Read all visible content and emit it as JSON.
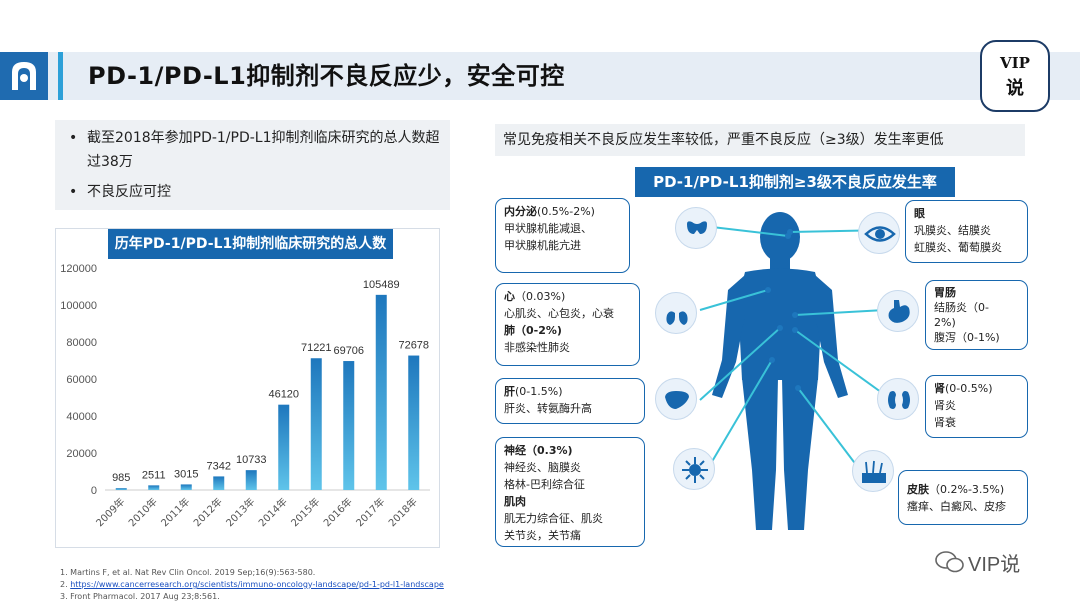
{
  "header": {
    "title": "PD-1/PD-L1抑制剂不良反应少，安全可控",
    "badge_line1": "VIP",
    "badge_line2": "说"
  },
  "bullets": [
    "截至2018年参加PD-1/PD-L1抑制剂临床研究的总人数超过38万",
    "不良反应可控"
  ],
  "chart_data": {
    "type": "bar",
    "title": "历年PD-1/PD-L1抑制剂临床研究的总人数",
    "categories": [
      "2009年",
      "2010年",
      "2011年",
      "2012年",
      "2013年",
      "2014年",
      "2015年",
      "2016年",
      "2017年",
      "2018年"
    ],
    "values": [
      985,
      2511,
      3015,
      7342,
      10733,
      46120,
      71221,
      69706,
      105489,
      72678
    ],
    "ylim": [
      0,
      120000
    ],
    "yticks": [
      0,
      20000,
      40000,
      60000,
      80000,
      100000,
      120000
    ],
    "grid": false,
    "xlabel": "",
    "ylabel": ""
  },
  "right": {
    "subtitle": "常见免疫相关不良反应发生率较低，严重不良反应（≥3级）发生率更低",
    "header": "PD-1/PD-L1抑制剂≥3级不良反应发生率"
  },
  "ae": {
    "endocrine": {
      "title": "内分泌",
      "rate": "(0.5%-2%)",
      "lines": [
        "甲状腺机能减退、",
        "甲状腺机能亢进"
      ]
    },
    "heart": {
      "title": "心",
      "rate": "（0.03%)",
      "lines": [
        "心肌炎、心包炎，心衰"
      ]
    },
    "lung": {
      "title": "肺（0-2%)",
      "lines": [
        "非感染性肺炎"
      ]
    },
    "liver": {
      "title": "肝",
      "rate": "(0-1.5%)",
      "lines": [
        "肝炎、转氨酶升高"
      ]
    },
    "nerve": {
      "title": "神经（0.3%)",
      "lines": [
        "神经炎、脑膜炎",
        "格林-巴利综合征"
      ]
    },
    "muscle": {
      "title": "肌肉",
      "lines": [
        "肌无力综合征、肌炎",
        "关节炎，关节痛"
      ]
    },
    "eye": {
      "title": "眼",
      "lines": [
        "巩膜炎、结膜炎",
        "虹膜炎、葡萄膜炎"
      ]
    },
    "gi": {
      "title": "胃肠",
      "lines": [
        "结肠炎（0-",
        "2%)",
        "腹泻（0-1%)"
      ]
    },
    "kidney": {
      "title": "肾",
      "rate": "(0-0.5%)",
      "lines": [
        "肾炎",
        "肾衰"
      ]
    },
    "skin": {
      "title": "皮肤",
      "rate": "（0.2%-3.5%)",
      "lines": [
        "瘙痒、白癜风、皮疹"
      ]
    }
  },
  "references": [
    "1. Martins F, et al. Nat Rev Clin Oncol. 2019 Sep;16(9):563-580.",
    "https://www.cancerresearch.org/scientists/immuno-oncology-landscape/pd-1-pd-l1-landscape",
    "3.  Front Pharmacol. 2017 Aug 23;8:561."
  ],
  "reference_2_prefix": "2. ",
  "watermark": "VIP说",
  "colors": {
    "brand_blue": "#1767ae",
    "bar_top": "#1e77bd",
    "bar_bottom": "#5fc4ea",
    "header_bg": "#e6edf5"
  },
  "icons": [
    "logo-icon",
    "thyroid-icon",
    "lungs-icon",
    "liver-icon",
    "neuron-icon",
    "eye-icon",
    "stomach-icon",
    "kidney-icon",
    "skin-icon",
    "wechat-icon"
  ]
}
